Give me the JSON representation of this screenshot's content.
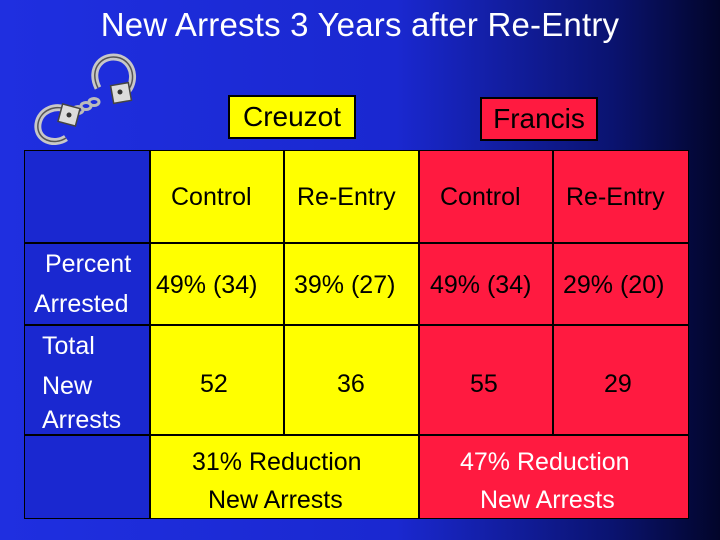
{
  "title": "New Arrests 3 Years after Re-Entry",
  "groups": {
    "creuzot": "Creuzot",
    "francis": "Francis"
  },
  "columns": {
    "c1": "Control",
    "c2": "Re-Entry",
    "c3": "Control",
    "c4": "Re-Entry"
  },
  "rows": {
    "percent_label_1": "Percent",
    "percent_label_2": "Arrested",
    "total_label_1": "Total",
    "total_label_2": "New",
    "total_label_3": "Arrests"
  },
  "percent": {
    "c1": "49% (34)",
    "c2": "39% (27)",
    "c3": "49% (34)",
    "c4": "29% (20)"
  },
  "total": {
    "c1": "52",
    "c2": "36",
    "c3": "55",
    "c4": "29"
  },
  "summary": {
    "creuzot_1": "31%  Reduction",
    "creuzot_2": "New Arrests",
    "francis_1": "47% Reduction",
    "francis_2": "New Arrests"
  },
  "colors": {
    "background": "#1a28d0",
    "creuzot": "#ffff00",
    "francis": "#ff1a40"
  },
  "icons": [
    "handcuffs-icon"
  ]
}
